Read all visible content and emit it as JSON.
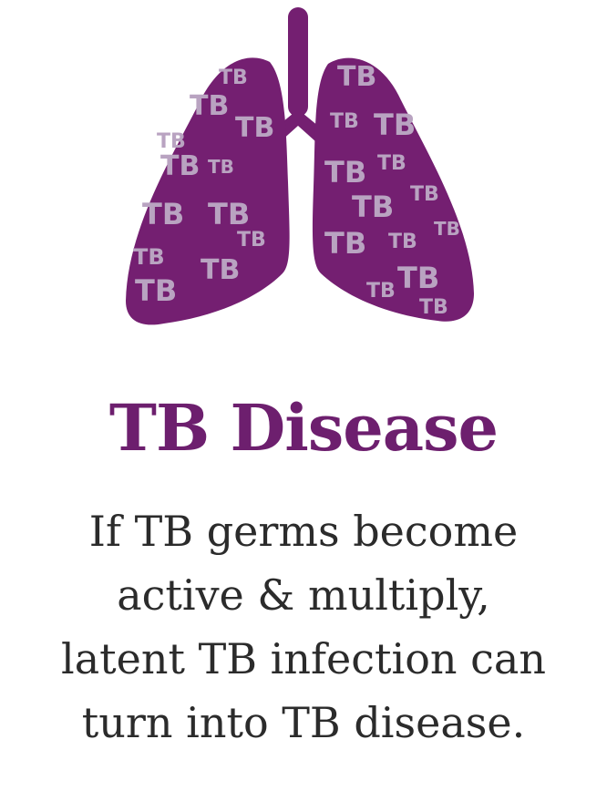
{
  "graphic": {
    "icon": "lungs-icon",
    "lung_color": "#741f71",
    "label_color": "#b9a3c1",
    "germ_label": "TB"
  },
  "heading": {
    "title": "TB Disease",
    "color": "#6d1f6e"
  },
  "body": {
    "lines": [
      "If TB germs become",
      "active & multiply,",
      "latent TB infection can",
      "turn into TB disease."
    ]
  }
}
